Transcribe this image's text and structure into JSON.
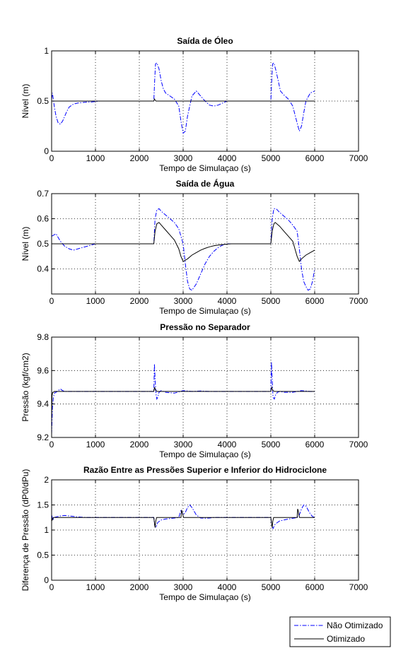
{
  "chart_data": [
    {
      "type": "line",
      "title": "Saída de Óleo",
      "xlabel": "Tempo de Simulaçao (s)",
      "ylabel": "Nível (m)",
      "xlim": [
        0,
        7000
      ],
      "ylim": [
        0,
        1
      ],
      "xticks": [
        0,
        1000,
        2000,
        3000,
        4000,
        5000,
        6000,
        7000
      ],
      "yticks": [
        0,
        0.5,
        1
      ],
      "ytick_labels": [
        "0",
        "0.5",
        "1"
      ],
      "grid": true,
      "series": [
        {
          "name": "Não Otimizado",
          "color": "#0000ff",
          "style": "dashdot",
          "x": [
            0,
            20,
            60,
            100,
            150,
            200,
            250,
            300,
            350,
            400,
            500,
            600,
            700,
            800,
            900,
            1000,
            1100,
            1200,
            1300,
            1400,
            2330,
            2350,
            2370,
            2400,
            2450,
            2500,
            2550,
            2600,
            2700,
            2800,
            2900,
            2950,
            3000,
            3050,
            3100,
            3200,
            3300,
            3400,
            3500,
            3600,
            3700,
            3800,
            3900,
            4000,
            5000,
            5020,
            5040,
            5070,
            5120,
            5170,
            5220,
            5300,
            5400,
            5500,
            5600,
            5650,
            5700,
            5750,
            5800,
            5900,
            6000
          ],
          "y": [
            0.52,
            0.58,
            0.45,
            0.35,
            0.28,
            0.27,
            0.3,
            0.35,
            0.4,
            0.44,
            0.47,
            0.48,
            0.485,
            0.49,
            0.49,
            0.495,
            0.5,
            0.5,
            0.5,
            0.5,
            0.5,
            0.7,
            0.87,
            0.88,
            0.82,
            0.7,
            0.62,
            0.58,
            0.55,
            0.52,
            0.45,
            0.3,
            0.18,
            0.2,
            0.35,
            0.55,
            0.6,
            0.55,
            0.5,
            0.46,
            0.45,
            0.46,
            0.48,
            0.5,
            0.5,
            0.7,
            0.87,
            0.88,
            0.8,
            0.7,
            0.6,
            0.56,
            0.52,
            0.45,
            0.28,
            0.2,
            0.25,
            0.38,
            0.5,
            0.58,
            0.6
          ]
        },
        {
          "name": "Otimizado",
          "color": "#000000",
          "style": "solid",
          "x": [
            0,
            2330,
            2345,
            2360,
            2380,
            2420,
            6000
          ],
          "y": [
            0.5,
            0.5,
            0.52,
            0.51,
            0.5,
            0.5,
            0.5
          ]
        }
      ]
    },
    {
      "type": "line",
      "title": "Saída de Água",
      "xlabel": "Tempo de Simulaçao (s)",
      "ylabel": "Nível (m)",
      "xlim": [
        0,
        7000
      ],
      "ylim": [
        0.3,
        0.7
      ],
      "xticks": [
        0,
        1000,
        2000,
        3000,
        4000,
        5000,
        6000,
        7000
      ],
      "yticks": [
        0.4,
        0.5,
        0.6,
        0.7
      ],
      "ytick_labels": [
        "0.4",
        "0.5",
        "0.6",
        "0.7"
      ],
      "grid": true,
      "series": [
        {
          "name": "Não Otimizado",
          "color": "#0000ff",
          "style": "dashdot",
          "x": [
            0,
            100,
            200,
            300,
            400,
            500,
            600,
            700,
            800,
            900,
            1000,
            2330,
            2360,
            2400,
            2450,
            2500,
            2600,
            2700,
            2800,
            2900,
            3000,
            3050,
            3100,
            3150,
            3200,
            3300,
            3400,
            3500,
            3600,
            3700,
            3800,
            3900,
            4000,
            5000,
            5030,
            5070,
            5120,
            5200,
            5300,
            5400,
            5500,
            5600,
            5650,
            5700,
            5750,
            5800,
            5850,
            5900,
            5950,
            6000
          ],
          "y": [
            0.53,
            0.54,
            0.51,
            0.49,
            0.48,
            0.475,
            0.48,
            0.485,
            0.49,
            0.495,
            0.5,
            0.5,
            0.6,
            0.635,
            0.64,
            0.63,
            0.615,
            0.6,
            0.585,
            0.56,
            0.5,
            0.42,
            0.35,
            0.32,
            0.315,
            0.34,
            0.38,
            0.42,
            0.45,
            0.47,
            0.485,
            0.495,
            0.5,
            0.5,
            0.6,
            0.64,
            0.64,
            0.625,
            0.61,
            0.595,
            0.575,
            0.55,
            0.48,
            0.4,
            0.35,
            0.33,
            0.315,
            0.32,
            0.35,
            0.4
          ]
        },
        {
          "name": "Otimizado",
          "color": "#000000",
          "style": "solid",
          "x": [
            0,
            1000,
            2330,
            2360,
            2400,
            2450,
            2500,
            2600,
            2700,
            2800,
            2900,
            2950,
            3000,
            3100,
            3200,
            3300,
            3400,
            3500,
            3600,
            3700,
            3800,
            3900,
            4000,
            4100,
            5000,
            5030,
            5070,
            5100,
            5200,
            5300,
            5400,
            5500,
            5550,
            5600,
            5650,
            5700,
            5800,
            5900,
            6000
          ],
          "y": [
            0.5,
            0.5,
            0.5,
            0.55,
            0.58,
            0.585,
            0.575,
            0.555,
            0.535,
            0.515,
            0.48,
            0.45,
            0.43,
            0.44,
            0.455,
            0.465,
            0.475,
            0.482,
            0.488,
            0.492,
            0.495,
            0.497,
            0.499,
            0.5,
            0.5,
            0.55,
            0.58,
            0.585,
            0.57,
            0.55,
            0.53,
            0.51,
            0.48,
            0.45,
            0.43,
            0.44,
            0.455,
            0.465,
            0.475
          ]
        }
      ]
    },
    {
      "type": "line",
      "title": "Pressão no Separador",
      "xlabel": "Tempo de Simulaçao (s)",
      "ylabel": "Pressão (kgf/cm2)",
      "xlim": [
        0,
        7000
      ],
      "ylim": [
        9.2,
        9.8
      ],
      "xticks": [
        0,
        1000,
        2000,
        3000,
        4000,
        5000,
        6000,
        7000
      ],
      "yticks": [
        9.2,
        9.4,
        9.6,
        9.8
      ],
      "ytick_labels": [
        "9.2",
        "9.4",
        "9.6",
        "9.8"
      ],
      "grid": true,
      "series": [
        {
          "name": "Não Otimizado",
          "color": "#0000ff",
          "style": "dashdot",
          "x": [
            0,
            20,
            40,
            60,
            80,
            100,
            150,
            200,
            250,
            300,
            400,
            2330,
            2345,
            2360,
            2380,
            2400,
            2420,
            2450,
            2500,
            2550,
            2600,
            2800,
            3000,
            3200,
            3400,
            3600,
            3800,
            5000,
            5015,
            5030,
            5050,
            5080,
            5100,
            5150,
            5200,
            5300,
            5500,
            5700,
            5900,
            6000
          ],
          "y": [
            9.22,
            9.38,
            9.44,
            9.46,
            9.47,
            9.47,
            9.48,
            9.49,
            9.48,
            9.475,
            9.475,
            9.475,
            9.64,
            9.55,
            9.46,
            9.43,
            9.44,
            9.47,
            9.48,
            9.475,
            9.47,
            9.465,
            9.48,
            9.475,
            9.478,
            9.475,
            9.475,
            9.475,
            9.65,
            9.55,
            9.44,
            9.43,
            9.45,
            9.47,
            9.475,
            9.47,
            9.47,
            9.48,
            9.475,
            9.475
          ]
        },
        {
          "name": "Otimizado",
          "color": "#000000",
          "style": "solid",
          "x": [
            0,
            10,
            25,
            40,
            60,
            100,
            2330,
            2340,
            2350,
            2360,
            2375,
            2420,
            5000,
            5010,
            5020,
            5030,
            5045,
            5090,
            6000
          ],
          "y": [
            9.3,
            9.45,
            9.47,
            9.47,
            9.475,
            9.475,
            9.475,
            9.49,
            9.5,
            9.49,
            9.48,
            9.475,
            9.475,
            9.49,
            9.5,
            9.49,
            9.48,
            9.475,
            9.475
          ]
        }
      ]
    },
    {
      "type": "line",
      "title": "Razão Entre as Pressões Superior e Inferior do Hidrociclone",
      "xlabel": "Tempo de Simulaçao (s)",
      "ylabel": "Diferença de Pressão (dP0/dPu)",
      "xlim": [
        0,
        7000
      ],
      "ylim": [
        0,
        2
      ],
      "xticks": [
        0,
        1000,
        2000,
        3000,
        4000,
        5000,
        6000,
        7000
      ],
      "yticks": [
        0,
        0.5,
        1,
        1.5,
        2
      ],
      "ytick_labels": [
        "0",
        "0.5",
        "1",
        "1.5",
        "2"
      ],
      "grid": true,
      "series": [
        {
          "name": "Não Otimizado",
          "color": "#0000ff",
          "style": "dashdot",
          "x": [
            0,
            30,
            60,
            100,
            200,
            300,
            400,
            500,
            600,
            700,
            800,
            2330,
            2350,
            2380,
            2420,
            2500,
            2600,
            2700,
            2800,
            2900,
            2950,
            3000,
            3050,
            3100,
            3150,
            3200,
            3300,
            3400,
            3500,
            3600,
            3700,
            5000,
            5020,
            5050,
            5100,
            5200,
            5300,
            5400,
            5600,
            5650,
            5700,
            5750,
            5800,
            5850,
            5900,
            5950,
            6000
          ],
          "y": [
            1.3,
            1.2,
            1.25,
            1.26,
            1.28,
            1.29,
            1.28,
            1.27,
            1.26,
            1.255,
            1.25,
            1.25,
            1.1,
            1.05,
            1.15,
            1.2,
            1.22,
            1.23,
            1.24,
            1.25,
            1.4,
            1.3,
            1.35,
            1.45,
            1.5,
            1.45,
            1.3,
            1.24,
            1.235,
            1.24,
            1.25,
            1.25,
            1.1,
            1.03,
            1.12,
            1.18,
            1.2,
            1.22,
            1.25,
            1.3,
            1.42,
            1.5,
            1.48,
            1.4,
            1.32,
            1.27,
            1.25
          ]
        },
        {
          "name": "Otimizado",
          "color": "#000000",
          "style": "solid",
          "x": [
            0,
            15,
            40,
            2330,
            2345,
            2360,
            2375,
            2395,
            2950,
            2965,
            2980,
            2995,
            3010,
            5000,
            5015,
            5030,
            5045,
            5065,
            5600,
            5612,
            5625,
            5640,
            5655,
            6000
          ],
          "y": [
            1.25,
            1.2,
            1.25,
            1.25,
            1.15,
            1.05,
            1.18,
            1.25,
            1.25,
            1.4,
            1.35,
            1.3,
            1.25,
            1.25,
            1.15,
            1.05,
            1.18,
            1.25,
            1.25,
            1.42,
            1.38,
            1.3,
            1.25,
            1.25
          ]
        }
      ]
    }
  ],
  "legend": {
    "placement": "bottom-right",
    "entries": [
      "Não Otimizado",
      "Otimizado"
    ]
  }
}
